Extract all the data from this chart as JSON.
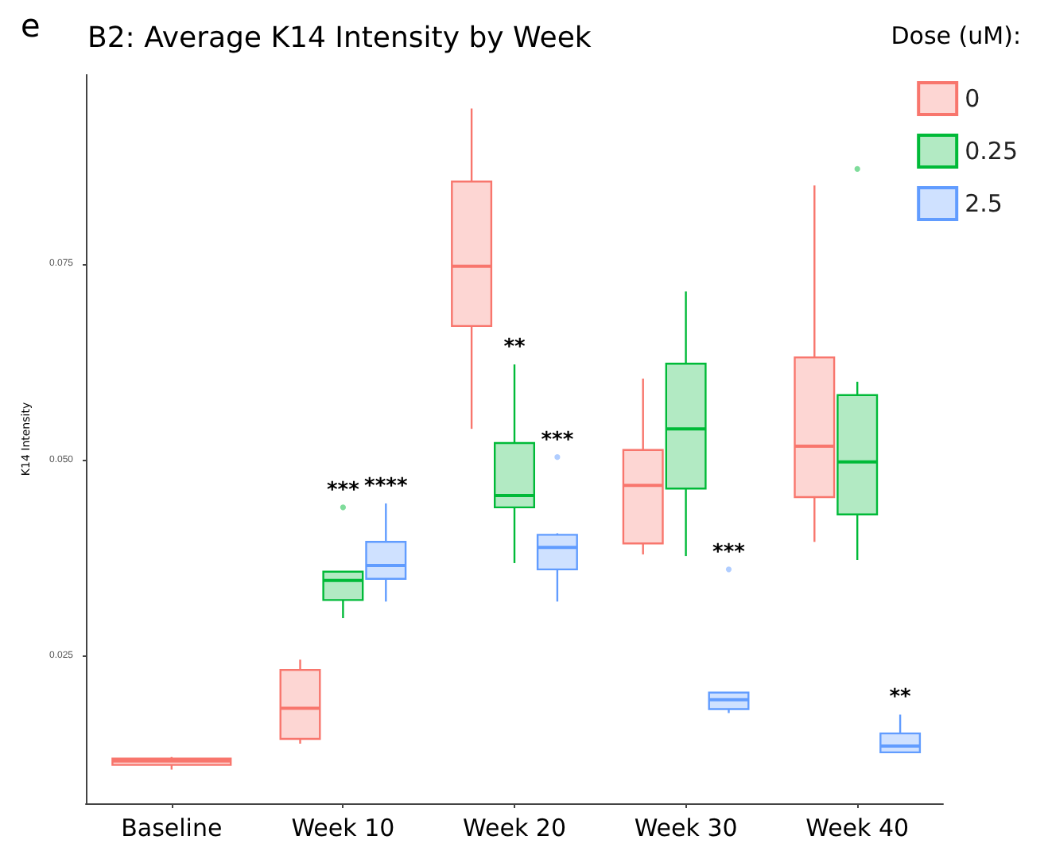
{
  "chart_data": {
    "type": "box",
    "title": "B2: Average K14 Intensity by Week",
    "ylabel": "K14 Intensity",
    "legend_title": "Dose (uM):",
    "annotations": [
      "e",
      "***",
      "****",
      "**",
      "***",
      "***",
      "**"
    ],
    "categories": [
      "Baseline",
      "Week 10",
      "Week 20",
      "Week 30",
      "Week 40"
    ],
    "series": [
      {
        "name": "0",
        "color": "#f8766d",
        "boxes": [
          {
            "low": 0.0106,
            "q1": 0.0112,
            "median": 0.0117,
            "q3": 0.012,
            "high": 0.0122
          },
          {
            "low": 0.0139,
            "q1": 0.0145,
            "median": 0.0184,
            "q3": 0.0233,
            "high": 0.0246
          },
          {
            "low": 0.054,
            "q1": 0.0671,
            "median": 0.0747,
            "q3": 0.0855,
            "high": 0.0948
          },
          {
            "low": 0.038,
            "q1": 0.0394,
            "median": 0.0468,
            "q3": 0.0513,
            "high": 0.0604
          },
          {
            "low": 0.0396,
            "q1": 0.0453,
            "median": 0.0518,
            "q3": 0.0631,
            "high": 0.085
          }
        ]
      },
      {
        "name": "0.25",
        "color": "#00ba38",
        "boxes": [
          null,
          {
            "low": 0.0299,
            "q1": 0.0322,
            "median": 0.0347,
            "q3": 0.0358,
            "high": 0.0358,
            "outliers": [
              0.044
            ]
          },
          {
            "low": 0.0369,
            "q1": 0.044,
            "median": 0.0455,
            "q3": 0.0522,
            "high": 0.0622
          },
          {
            "low": 0.0378,
            "q1": 0.0464,
            "median": 0.054,
            "q3": 0.0623,
            "high": 0.0715
          },
          {
            "low": 0.0373,
            "q1": 0.0431,
            "median": 0.0498,
            "q3": 0.0583,
            "high": 0.06,
            "outliers": [
              0.0871
            ]
          }
        ]
      },
      {
        "name": "2.5",
        "color": "#619cff",
        "boxes": [
          null,
          {
            "low": 0.032,
            "q1": 0.0349,
            "median": 0.0366,
            "q3": 0.0396,
            "high": 0.0445
          },
          {
            "low": 0.032,
            "q1": 0.0361,
            "median": 0.0389,
            "q3": 0.0405,
            "high": 0.0407,
            "outliers": [
              0.0504
            ]
          },
          {
            "low": 0.0178,
            "q1": 0.0183,
            "median": 0.0195,
            "q3": 0.0204,
            "high": 0.0204,
            "outliers": [
              0.0361
            ]
          },
          {
            "low": 0.0128,
            "q1": 0.0128,
            "median": 0.0136,
            "q3": 0.0152,
            "high": 0.0176
          }
        ]
      }
    ],
    "ylim": [
      0.0063,
      0.0991
    ],
    "yticks": [
      {
        "value": 0.025,
        "label": "0.025"
      },
      {
        "value": 0.05,
        "label": "0.050"
      },
      {
        "value": 0.075,
        "label": "0.075"
      }
    ],
    "grid": false,
    "legend": "top right"
  }
}
